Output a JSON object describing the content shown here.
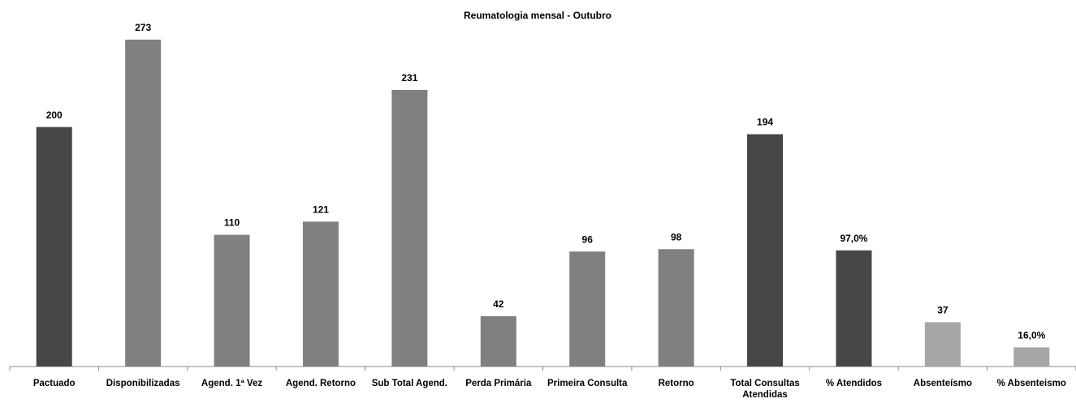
{
  "chart_data": {
    "type": "bar",
    "title": "Reumatologia mensal  - Outubro",
    "categories": [
      "Pactuado",
      "Disponibilizadas",
      "Agend. 1ª Vez",
      "Agend. Retorno",
      "Sub Total Agend.",
      "Perda Primária",
      "Primeira Consulta",
      "Retorno",
      "Total Consultas Atendidas",
      "% Atendidos",
      "Absenteísmo",
      "% Absenteismo"
    ],
    "values": [
      200,
      273,
      110,
      121,
      231,
      42,
      96,
      98,
      194,
      97,
      37,
      16
    ],
    "value_labels": [
      "200",
      "273",
      "110",
      "121",
      "231",
      "42",
      "96",
      "98",
      "194",
      "97,0%",
      "37",
      "16,0%"
    ],
    "colors": [
      "#474747",
      "#808080",
      "#808080",
      "#808080",
      "#808080",
      "#808080",
      "#808080",
      "#808080",
      "#474747",
      "#474747",
      "#a6a6a6",
      "#a6a6a6"
    ],
    "ylim": [
      0,
      300
    ]
  }
}
